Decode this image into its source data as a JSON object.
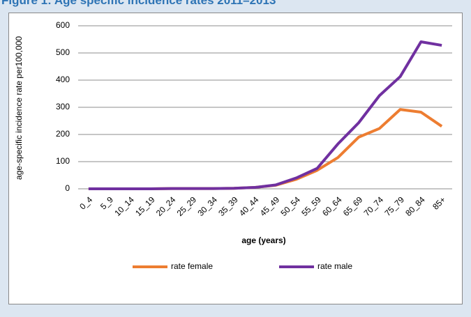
{
  "chart_data": {
    "type": "line",
    "title": "Figure 1: Age specific incidence rates 2011–2013",
    "x_label": "age (years)",
    "y_label": "age-specific incidence rate per100,000",
    "categories": [
      "0_4",
      "5_9",
      "10_14",
      "15_19",
      "20_24",
      "25_29",
      "30_34",
      "35_39",
      "40_44",
      "45_49",
      "50_54",
      "55_59",
      "60_64",
      "65_69",
      "70_74",
      "75_79",
      "80_84",
      "85+"
    ],
    "series": [
      {
        "name": "rate female",
        "color": "#ed7d31",
        "values": [
          0,
          0,
          0,
          0,
          1,
          1,
          1,
          2,
          5,
          13,
          35,
          68,
          115,
          190,
          222,
          292,
          282,
          230
        ]
      },
      {
        "name": "rate male",
        "color": "#7030a0",
        "values": [
          0,
          0,
          0,
          0,
          1,
          1,
          1,
          2,
          5,
          14,
          40,
          75,
          165,
          243,
          343,
          413,
          541,
          528
        ]
      }
    ],
    "ylim": [
      0,
      600
    ],
    "yticks": [
      0,
      100,
      200,
      300,
      400,
      500,
      600
    ],
    "grid": true,
    "legend": "bottom"
  }
}
